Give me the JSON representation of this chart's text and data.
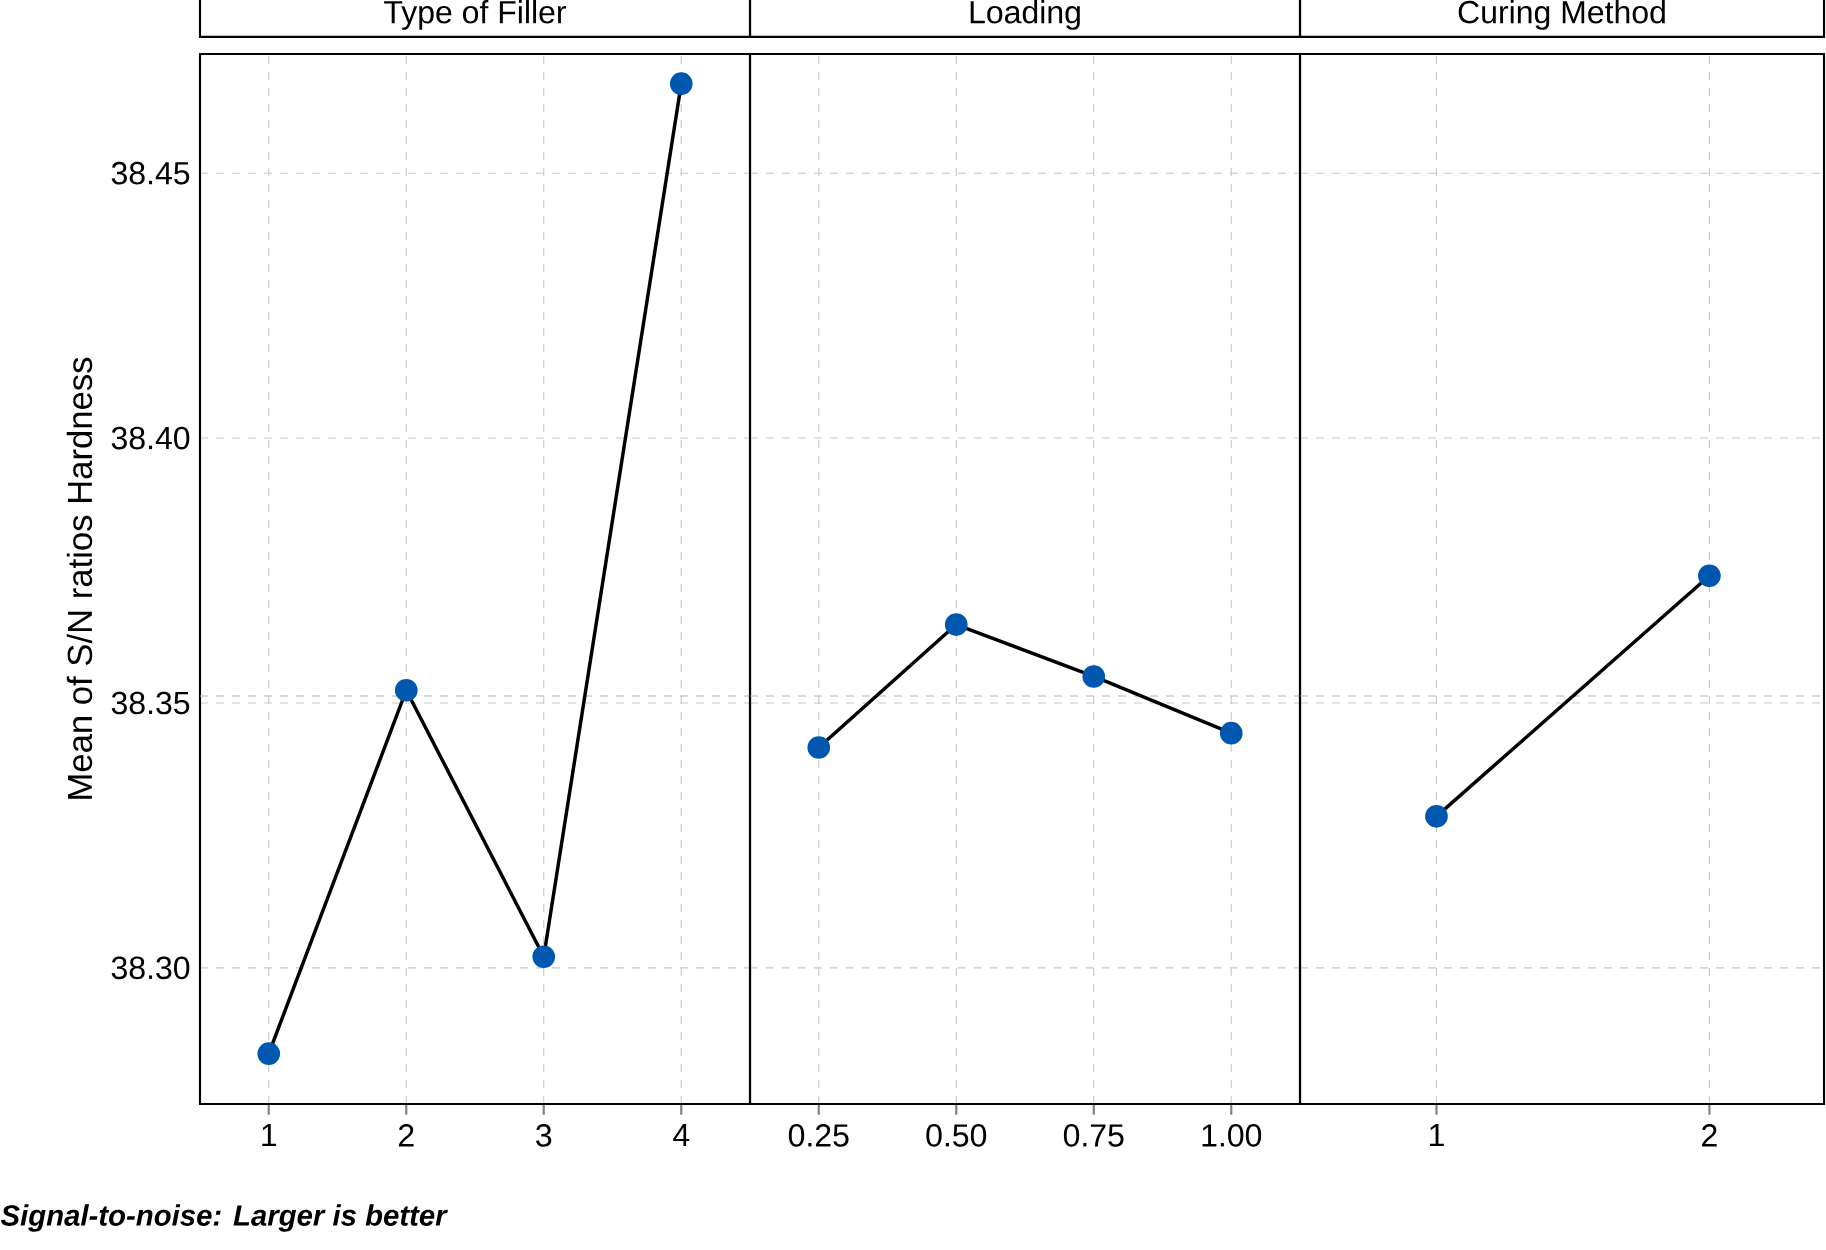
{
  "chart_data": [
    {
      "type": "line",
      "title": "Type of Filler",
      "ylabel": "Mean of S/N ratios Hardness",
      "x": [
        1,
        2,
        3,
        4
      ],
      "values": [
        38.2838,
        38.3524,
        38.3021,
        38.4669
      ],
      "color": "#0057b0",
      "marker": "circle",
      "line_style": "solid",
      "xlim": [
        0.5,
        4.5
      ],
      "xticks": [
        1,
        2,
        3,
        4
      ],
      "ylim": [
        38.2743,
        38.4725
      ],
      "yticks": [
        {
          "value": 38.3,
          "label": "38.30"
        },
        38.35,
        {
          "value": 38.4,
          "label": "38.40"
        },
        38.45
      ],
      "grid": true,
      "ref_lines": [
        {
          "axis": "y",
          "value": 38.3513,
          "color": "#b4b4b4",
          "line_style": "dashed"
        }
      ],
      "annotations": [
        "Signal-to-noise: Larger is better"
      ]
    },
    {
      "type": "line",
      "title": "Loading",
      "x": [
        0.25,
        0.5,
        0.75,
        1.0
      ],
      "values": [
        38.3416,
        38.3648,
        38.355,
        38.3443
      ],
      "color": "#0057b0",
      "marker": "circle",
      "line_style": "solid",
      "xlim": [
        0.125,
        1.125
      ],
      "xticks": [
        0.25,
        {
          "value": 0.5,
          "label": "0.50"
        },
        0.75,
        {
          "value": 1.0,
          "label": "1.00"
        }
      ],
      "ylim": [
        38.2743,
        38.4725
      ],
      "yticks": [
        38.3,
        38.35,
        38.4,
        38.45
      ],
      "grid": true,
      "tick_labels": "x",
      "ref_lines": [
        {
          "axis": "y",
          "value": 38.3513,
          "color": "#b4b4b4",
          "line_style": "dashed"
        }
      ]
    },
    {
      "type": "line",
      "title": "Curing Method",
      "x": [
        1,
        2
      ],
      "values": [
        38.3286,
        38.374
      ],
      "color": "#0057b0",
      "marker": "circle",
      "line_style": "solid",
      "xlim": [
        0.5,
        2.42
      ],
      "xticks": [
        1,
        2
      ],
      "ylim": [
        38.2743,
        38.4725
      ],
      "yticks": [
        38.3,
        38.35,
        38.4,
        38.45
      ],
      "grid": true,
      "tick_labels": "x",
      "ref_lines": [
        {
          "axis": "y",
          "value": 38.3513,
          "color": "#b4b4b4",
          "line_style": "dashed"
        }
      ]
    }
  ]
}
